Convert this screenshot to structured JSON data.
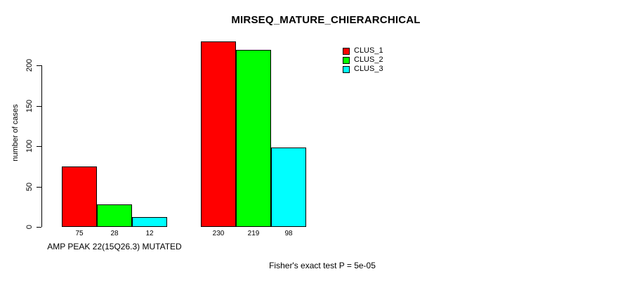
{
  "chart_data": {
    "type": "bar",
    "title": "MIRSEQ_MATURE_CHIERARCHICAL",
    "ylabel": "number of cases",
    "xlabel": "",
    "yticks": [
      0,
      50,
      100,
      150,
      200
    ],
    "ylim": [
      0,
      230
    ],
    "grid": false,
    "legend_position": "topright",
    "series": [
      {
        "name": "CLUS_1",
        "color": "#ff0000"
      },
      {
        "name": "CLUS_2",
        "color": "#00ff00"
      },
      {
        "name": "CLUS_3",
        "color": "#00ffff"
      }
    ],
    "groups": [
      {
        "label": "AMP PEAK 22(15Q26.3) MUTATED",
        "values": [
          75,
          28,
          12
        ]
      },
      {
        "label": "",
        "values": [
          230,
          219,
          98
        ]
      }
    ],
    "footer": "Fisher's exact test P = 5e-05",
    "axis_color": "#000000",
    "background_color": "#ffffff"
  }
}
